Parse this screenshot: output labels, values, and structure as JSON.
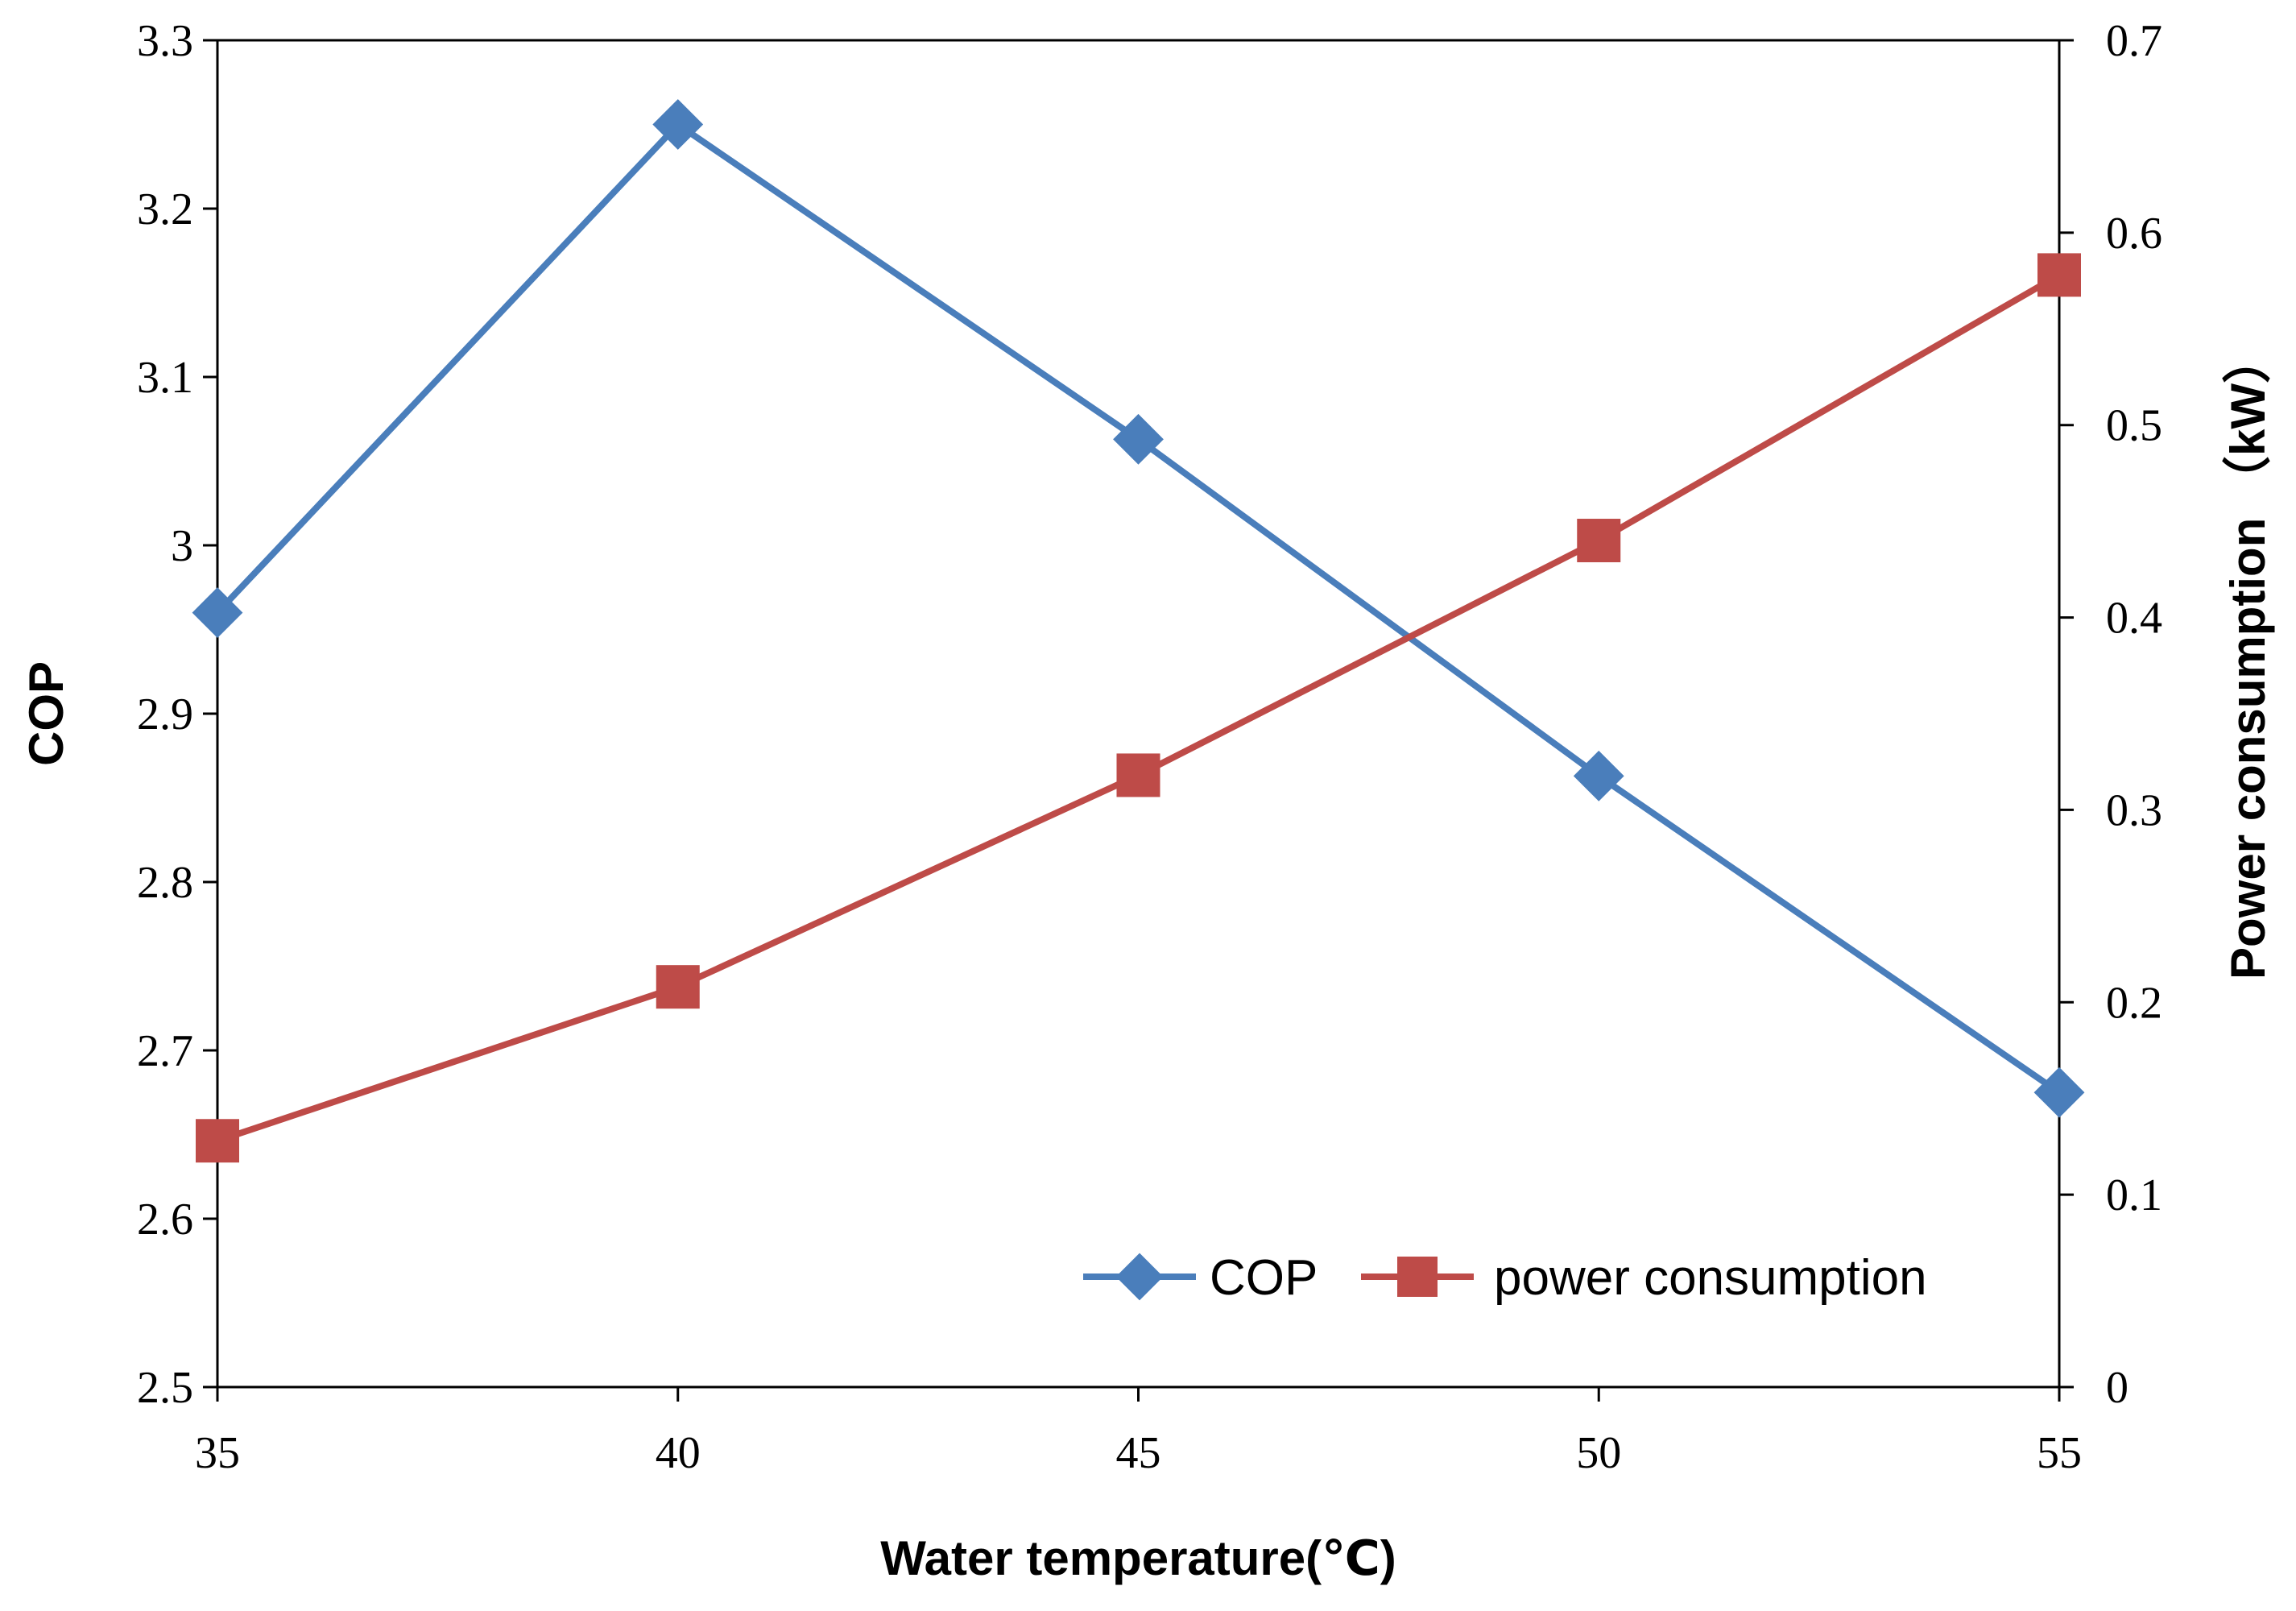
{
  "chart_data": {
    "type": "line",
    "x": [
      35,
      40,
      45,
      50,
      55
    ],
    "xlabel": "Water temperature(℃)",
    "ylabel_left": "COP",
    "ylabel_right": "Power consumption （kW）",
    "xlim": [
      35,
      55
    ],
    "xticks": [
      "35",
      "40",
      "45",
      "50",
      "55"
    ],
    "ylim_left": [
      2.5,
      3.3
    ],
    "yticks_left": [
      "2.5",
      "2.6",
      "2.7",
      "2.8",
      "2.9",
      "3",
      "3.1",
      "3.2",
      "3.3"
    ],
    "ylim_right": [
      0,
      0.7
    ],
    "yticks_right": [
      "0",
      "0.1",
      "0.2",
      "0.3",
      "0.4",
      "0.5",
      "0.6",
      "0.7"
    ],
    "grid": false,
    "legend_position": "bottom-right",
    "series": [
      {
        "name": "COP",
        "axis": "left",
        "marker": "diamond",
        "color": "#4a7ebb",
        "values": [
          2.96,
          3.25,
          3.063,
          2.863,
          2.675
        ]
      },
      {
        "name": "power consumption",
        "axis": "right",
        "marker": "square",
        "color": "#be4b48",
        "values": [
          0.128,
          0.208,
          0.318,
          0.44,
          0.578
        ]
      }
    ]
  }
}
